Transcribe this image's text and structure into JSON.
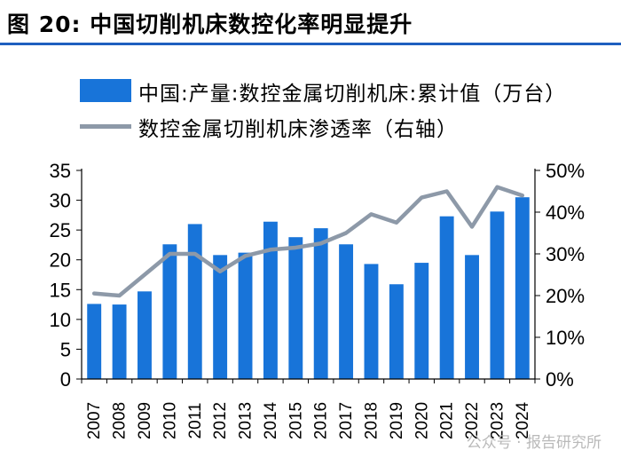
{
  "header": {
    "title": "图 20:  中国切削机床数控化率明显提升"
  },
  "watermark": "公众号 · 报告研究所",
  "chart_data": {
    "type": "bar",
    "categories": [
      "2007",
      "2008",
      "2009",
      "2010",
      "2011",
      "2012",
      "2013",
      "2014",
      "2015",
      "2016",
      "2017",
      "2018",
      "2019",
      "2020",
      "2021",
      "2022",
      "2023",
      "2024"
    ],
    "series": [
      {
        "name": "中国:产量:数控金属切削机床:累计值（万台）",
        "type": "bar",
        "axis": "left",
        "color": "#1874d9",
        "values": [
          12.6,
          12.5,
          14.7,
          22.6,
          26.0,
          20.8,
          21.2,
          26.4,
          23.8,
          25.3,
          22.6,
          19.3,
          15.9,
          19.5,
          27.3,
          20.8,
          28.1,
          30.5
        ]
      },
      {
        "name": "数控金属切削机床渗透率（右轴）",
        "type": "line",
        "axis": "right",
        "color": "#8d99a8",
        "values": [
          20.5,
          20.0,
          25.0,
          30.0,
          30.0,
          25.8,
          29.5,
          31.0,
          31.5,
          32.5,
          35.0,
          39.5,
          37.5,
          43.5,
          45.0,
          36.5,
          46.0,
          44.0
        ]
      }
    ],
    "ylim": [
      0,
      35
    ],
    "yticks": [
      "0",
      "5",
      "10",
      "15",
      "20",
      "25",
      "30",
      "35"
    ],
    "y2lim": [
      0,
      50
    ],
    "y2ticks": [
      "0%",
      "10%",
      "20%",
      "30%",
      "40%",
      "50%"
    ],
    "legend_position": "top-left",
    "grid": false
  }
}
